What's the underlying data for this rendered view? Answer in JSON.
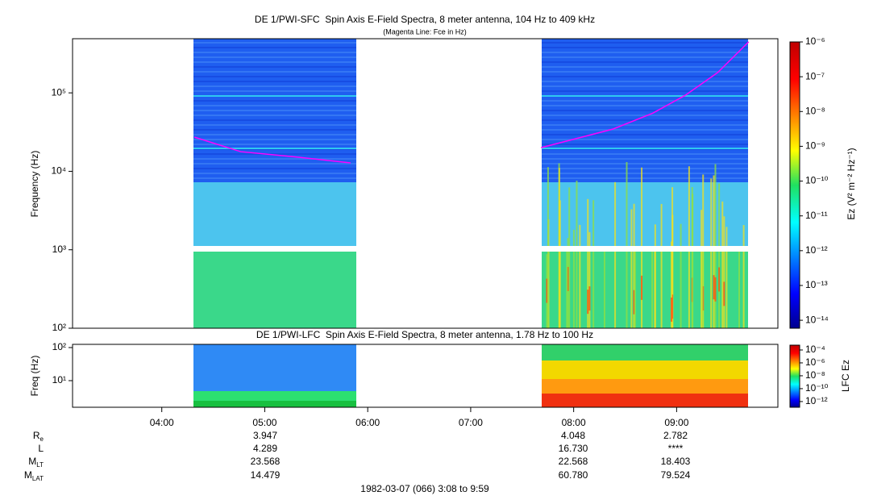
{
  "chart_data": [
    {
      "type": "spectrogram",
      "title": "DE 1/PWI-SFC  Spin Axis E-Field Spectra, 8 meter antenna, 104 Hz to 409 kHz",
      "subtitle": "(Magenta Line: Fce in Hz)",
      "y_label": "Frequency (Hz)",
      "log_y": true,
      "ylim": [
        100,
        490000
      ],
      "yticks": [
        {
          "value": 100,
          "label": "10²"
        },
        {
          "value": 1000,
          "label": "10³"
        },
        {
          "value": 10000,
          "label": "10⁴"
        },
        {
          "value": 100000,
          "label": "10⁵"
        }
      ],
      "xlim": [
        "03:08",
        "09:59"
      ],
      "series": [
        {
          "name": "Fce",
          "color": "#ff00ff",
          "x": [
            "04:19",
            "04:46",
            "05:20",
            "05:50",
            "06:45",
            "07:41",
            "08:23",
            "08:46",
            "09:05",
            "09:24",
            "09:42"
          ],
          "values": [
            27300,
            17800,
            15100,
            12800,
            null,
            20000,
            34600,
            55000,
            93000,
            182000,
            447000
          ]
        }
      ],
      "colorbar": {
        "label": "Ez (V² m⁻² Hz⁻¹)",
        "log": true,
        "lim": [
          5.9e-15,
          1e-06
        ],
        "ticks": [
          {
            "value": 1e-06,
            "label": "10⁻⁶"
          },
          {
            "value": 1e-07,
            "label": "10⁻⁷"
          },
          {
            "value": 1e-08,
            "label": "10⁻⁸"
          },
          {
            "value": 1e-09,
            "label": "10⁻⁹"
          },
          {
            "value": 1e-10,
            "label": "10⁻¹⁰"
          },
          {
            "value": 1e-11,
            "label": "10⁻¹¹"
          },
          {
            "value": 1e-12,
            "label": "10⁻¹²"
          },
          {
            "value": 1e-13,
            "label": "10⁻¹³"
          },
          {
            "value": 1e-14,
            "label": "10⁻¹⁴"
          }
        ]
      }
    },
    {
      "type": "spectrogram",
      "title": "DE 1/PWI-LFC  Spin Axis E-Field Spectra, 8 meter antenna, 1.78 Hz to 100 Hz",
      "y_label": "Freq (Hz)",
      "log_y": true,
      "ylim": [
        1.57,
        125
      ],
      "yticks": [
        {
          "value": 10,
          "label": "10¹"
        },
        {
          "value": 100,
          "label": "10²"
        }
      ],
      "xlim": [
        "03:08",
        "09:59"
      ],
      "xticks": [
        "04:00",
        "05:00",
        "06:00",
        "07:00",
        "08:00",
        "09:00"
      ],
      "colorbar": {
        "label": "LFC Ez",
        "log": true,
        "lim": [
          1.3e-13,
          0.00056
        ],
        "ticks": [
          {
            "value": 0.0001,
            "label": "10⁻⁴"
          },
          {
            "value": 1e-06,
            "label": "10⁻⁶"
          },
          {
            "value": 1e-08,
            "label": "10⁻⁸"
          },
          {
            "value": 1e-10,
            "label": "10⁻¹⁰"
          },
          {
            "value": 1e-12,
            "label": "10⁻¹²"
          }
        ]
      }
    }
  ],
  "ephemeris": {
    "rows": [
      {
        "label": "R",
        "subscript": "e",
        "values": [
          "3.947",
          "4.048",
          "2.782"
        ]
      },
      {
        "label": "L",
        "values": [
          "4.289",
          "16.730",
          "****"
        ]
      },
      {
        "label": "M",
        "subscript": "LT",
        "values": [
          "23.568",
          "22.568",
          "18.403"
        ]
      },
      {
        "label": "M",
        "subscript": "LAT",
        "values": [
          "14.479",
          "60.780",
          "79.524"
        ]
      }
    ]
  },
  "footer": "1982-03-07 (066) 3:08 to 9:59"
}
